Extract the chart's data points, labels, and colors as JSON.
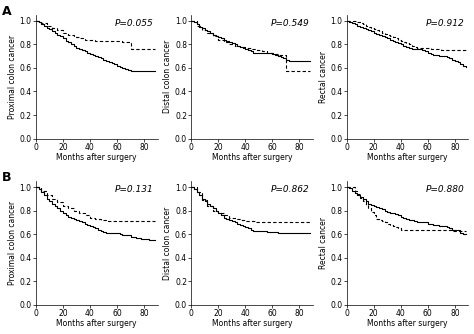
{
  "panels": [
    {
      "row": 0,
      "col": 0,
      "ylabel": "Proximal colon cancer",
      "pvalue": "P=0.055",
      "solid": {
        "t": [
          0,
          2,
          4,
          6,
          8,
          10,
          12,
          14,
          16,
          18,
          20,
          22,
          24,
          26,
          28,
          30,
          32,
          34,
          36,
          38,
          40,
          42,
          44,
          46,
          48,
          50,
          52,
          54,
          56,
          58,
          60,
          62,
          64,
          66,
          68,
          70,
          72,
          74,
          76,
          78,
          80,
          82,
          84,
          86,
          88
        ],
        "s": [
          1.0,
          0.99,
          0.97,
          0.96,
          0.94,
          0.93,
          0.91,
          0.9,
          0.88,
          0.87,
          0.85,
          0.83,
          0.82,
          0.8,
          0.79,
          0.77,
          0.76,
          0.75,
          0.74,
          0.73,
          0.72,
          0.71,
          0.7,
          0.69,
          0.68,
          0.67,
          0.66,
          0.65,
          0.64,
          0.63,
          0.62,
          0.61,
          0.6,
          0.59,
          0.58,
          0.57,
          0.57,
          0.57,
          0.57,
          0.57,
          0.57,
          0.57,
          0.57,
          0.57,
          0.57
        ]
      },
      "dashed": {
        "t": [
          0,
          4,
          8,
          12,
          16,
          20,
          24,
          28,
          32,
          36,
          40,
          44,
          48,
          52,
          56,
          60,
          64,
          68,
          70,
          74,
          78,
          82,
          86,
          88
        ],
        "s": [
          1.0,
          0.98,
          0.96,
          0.94,
          0.92,
          0.9,
          0.88,
          0.86,
          0.85,
          0.84,
          0.84,
          0.83,
          0.83,
          0.83,
          0.83,
          0.83,
          0.82,
          0.82,
          0.76,
          0.76,
          0.76,
          0.76,
          0.76,
          0.76
        ]
      }
    },
    {
      "row": 0,
      "col": 1,
      "ylabel": "Distal colon cancer",
      "pvalue": "P=0.549",
      "solid": {
        "t": [
          0,
          2,
          4,
          6,
          8,
          10,
          12,
          14,
          16,
          18,
          20,
          22,
          24,
          26,
          28,
          30,
          32,
          34,
          36,
          38,
          40,
          42,
          44,
          46,
          48,
          50,
          52,
          54,
          56,
          58,
          60,
          62,
          64,
          66,
          68,
          70,
          72,
          74,
          76,
          78,
          80,
          82,
          84,
          86,
          88
        ],
        "s": [
          1.0,
          0.99,
          0.97,
          0.95,
          0.94,
          0.92,
          0.91,
          0.9,
          0.88,
          0.87,
          0.86,
          0.85,
          0.84,
          0.83,
          0.82,
          0.81,
          0.8,
          0.79,
          0.78,
          0.77,
          0.76,
          0.75,
          0.74,
          0.73,
          0.73,
          0.73,
          0.73,
          0.73,
          0.73,
          0.73,
          0.72,
          0.71,
          0.7,
          0.69,
          0.68,
          0.67,
          0.66,
          0.66,
          0.66,
          0.66,
          0.66,
          0.66,
          0.66,
          0.66,
          0.66
        ]
      },
      "dashed": {
        "t": [
          0,
          4,
          8,
          12,
          16,
          20,
          24,
          28,
          32,
          36,
          40,
          44,
          48,
          50,
          52,
          54,
          56,
          58,
          60,
          62,
          64,
          66,
          68,
          70,
          72,
          74,
          76,
          78,
          80,
          82,
          84,
          86,
          88
        ],
        "s": [
          1.0,
          0.96,
          0.92,
          0.9,
          0.87,
          0.84,
          0.82,
          0.8,
          0.79,
          0.78,
          0.77,
          0.76,
          0.75,
          0.75,
          0.74,
          0.74,
          0.73,
          0.73,
          0.73,
          0.72,
          0.71,
          0.71,
          0.71,
          0.57,
          0.57,
          0.57,
          0.57,
          0.57,
          0.57,
          0.57,
          0.57,
          0.57,
          0.57
        ]
      }
    },
    {
      "row": 0,
      "col": 2,
      "ylabel": "Rectal cancer",
      "pvalue": "P=0.912",
      "solid": {
        "t": [
          0,
          2,
          4,
          6,
          8,
          10,
          12,
          14,
          16,
          18,
          20,
          22,
          24,
          26,
          28,
          30,
          32,
          34,
          36,
          38,
          40,
          42,
          44,
          46,
          48,
          50,
          52,
          54,
          56,
          58,
          60,
          62,
          64,
          66,
          68,
          70,
          72,
          74,
          76,
          78,
          80,
          82,
          84,
          86,
          88
        ],
        "s": [
          1.0,
          0.99,
          0.98,
          0.97,
          0.96,
          0.95,
          0.94,
          0.93,
          0.92,
          0.91,
          0.9,
          0.89,
          0.88,
          0.87,
          0.86,
          0.85,
          0.84,
          0.83,
          0.82,
          0.81,
          0.8,
          0.79,
          0.78,
          0.77,
          0.76,
          0.76,
          0.76,
          0.76,
          0.75,
          0.74,
          0.73,
          0.72,
          0.71,
          0.71,
          0.7,
          0.7,
          0.7,
          0.69,
          0.68,
          0.67,
          0.66,
          0.65,
          0.63,
          0.62,
          0.61
        ]
      },
      "dashed": {
        "t": [
          0,
          2,
          4,
          6,
          8,
          10,
          12,
          14,
          16,
          18,
          20,
          22,
          24,
          26,
          28,
          30,
          32,
          34,
          36,
          38,
          40,
          42,
          44,
          46,
          48,
          50,
          52,
          54,
          56,
          58,
          60,
          62,
          64,
          66,
          68,
          70,
          72,
          74,
          76,
          78,
          80,
          82,
          84,
          86,
          88
        ],
        "s": [
          1.0,
          1.0,
          1.0,
          1.0,
          0.99,
          0.98,
          0.97,
          0.96,
          0.95,
          0.94,
          0.93,
          0.92,
          0.91,
          0.9,
          0.89,
          0.88,
          0.87,
          0.86,
          0.85,
          0.84,
          0.83,
          0.82,
          0.81,
          0.8,
          0.79,
          0.78,
          0.77,
          0.77,
          0.77,
          0.77,
          0.77,
          0.76,
          0.76,
          0.76,
          0.76,
          0.75,
          0.75,
          0.75,
          0.75,
          0.75,
          0.75,
          0.75,
          0.75,
          0.75,
          0.75
        ]
      }
    },
    {
      "row": 1,
      "col": 0,
      "ylabel": "Proximal colon cancer",
      "pvalue": "P=0.131",
      "solid": {
        "t": [
          0,
          2,
          4,
          6,
          8,
          10,
          12,
          14,
          16,
          18,
          20,
          22,
          24,
          26,
          28,
          30,
          32,
          34,
          36,
          38,
          40,
          42,
          44,
          46,
          48,
          50,
          52,
          54,
          56,
          58,
          60,
          62,
          64,
          66,
          68,
          70,
          72,
          74,
          76,
          78,
          80,
          82,
          84,
          86,
          88
        ],
        "s": [
          1.0,
          0.98,
          0.96,
          0.93,
          0.9,
          0.88,
          0.86,
          0.84,
          0.82,
          0.8,
          0.78,
          0.76,
          0.75,
          0.74,
          0.73,
          0.72,
          0.71,
          0.7,
          0.69,
          0.68,
          0.67,
          0.66,
          0.65,
          0.64,
          0.63,
          0.62,
          0.61,
          0.61,
          0.61,
          0.61,
          0.61,
          0.6,
          0.59,
          0.59,
          0.59,
          0.58,
          0.58,
          0.57,
          0.57,
          0.56,
          0.56,
          0.56,
          0.55,
          0.55,
          0.55
        ]
      },
      "dashed": {
        "t": [
          0,
          4,
          8,
          12,
          16,
          20,
          24,
          28,
          32,
          36,
          40,
          44,
          48,
          52,
          56,
          60,
          64,
          68,
          72,
          76,
          80,
          84,
          88
        ],
        "s": [
          1.0,
          0.97,
          0.93,
          0.9,
          0.87,
          0.84,
          0.82,
          0.8,
          0.78,
          0.76,
          0.74,
          0.73,
          0.72,
          0.71,
          0.71,
          0.71,
          0.71,
          0.71,
          0.71,
          0.71,
          0.71,
          0.71,
          0.71
        ]
      }
    },
    {
      "row": 1,
      "col": 1,
      "ylabel": "Distal colon cancer",
      "pvalue": "P=0.862",
      "solid": {
        "t": [
          0,
          2,
          4,
          6,
          8,
          10,
          12,
          14,
          16,
          18,
          20,
          22,
          24,
          26,
          28,
          30,
          32,
          34,
          36,
          38,
          40,
          42,
          44,
          46,
          48,
          50,
          52,
          54,
          56,
          58,
          60,
          62,
          64,
          66,
          68,
          70,
          72,
          74,
          76,
          78,
          80,
          82,
          84,
          86,
          88
        ],
        "s": [
          1.0,
          0.98,
          0.96,
          0.93,
          0.9,
          0.88,
          0.86,
          0.84,
          0.82,
          0.8,
          0.78,
          0.76,
          0.74,
          0.73,
          0.72,
          0.71,
          0.7,
          0.69,
          0.68,
          0.67,
          0.66,
          0.65,
          0.64,
          0.63,
          0.63,
          0.63,
          0.63,
          0.63,
          0.62,
          0.62,
          0.62,
          0.62,
          0.61,
          0.61,
          0.61,
          0.61,
          0.61,
          0.61,
          0.61,
          0.61,
          0.61,
          0.61,
          0.61,
          0.61,
          0.61
        ]
      },
      "dashed": {
        "t": [
          0,
          4,
          8,
          12,
          16,
          20,
          24,
          28,
          32,
          36,
          40,
          44,
          48,
          52,
          56,
          60,
          64,
          68,
          72,
          76,
          80,
          84,
          88
        ],
        "s": [
          1.0,
          0.96,
          0.89,
          0.84,
          0.8,
          0.78,
          0.76,
          0.74,
          0.73,
          0.72,
          0.71,
          0.71,
          0.7,
          0.7,
          0.7,
          0.7,
          0.7,
          0.7,
          0.7,
          0.7,
          0.7,
          0.7,
          0.7
        ]
      }
    },
    {
      "row": 1,
      "col": 2,
      "ylabel": "Rectal cancer",
      "pvalue": "P=0.880",
      "solid": {
        "t": [
          0,
          2,
          4,
          6,
          8,
          10,
          12,
          14,
          16,
          18,
          20,
          22,
          24,
          26,
          28,
          30,
          32,
          34,
          36,
          38,
          40,
          42,
          44,
          46,
          48,
          50,
          52,
          54,
          56,
          58,
          60,
          62,
          64,
          66,
          68,
          70,
          72,
          74,
          76,
          78,
          80,
          82,
          84,
          86,
          88
        ],
        "s": [
          1.0,
          0.99,
          0.97,
          0.95,
          0.93,
          0.92,
          0.9,
          0.88,
          0.86,
          0.85,
          0.84,
          0.83,
          0.82,
          0.81,
          0.8,
          0.79,
          0.78,
          0.78,
          0.77,
          0.76,
          0.75,
          0.74,
          0.73,
          0.72,
          0.72,
          0.71,
          0.7,
          0.7,
          0.7,
          0.7,
          0.69,
          0.69,
          0.68,
          0.68,
          0.67,
          0.67,
          0.67,
          0.66,
          0.65,
          0.64,
          0.64,
          0.64,
          0.61,
          0.6,
          0.6
        ]
      },
      "dashed": {
        "t": [
          0,
          2,
          4,
          6,
          8,
          10,
          12,
          14,
          16,
          18,
          20,
          22,
          24,
          26,
          28,
          30,
          32,
          34,
          36,
          38,
          40,
          42,
          44,
          46,
          48,
          50,
          52,
          54,
          56,
          58,
          60,
          62,
          64,
          66,
          68,
          70,
          72,
          74,
          76,
          78,
          80,
          82,
          84,
          86,
          88
        ],
        "s": [
          1.0,
          1.0,
          1.0,
          0.97,
          0.94,
          0.91,
          0.88,
          0.85,
          0.82,
          0.79,
          0.76,
          0.73,
          0.72,
          0.71,
          0.7,
          0.69,
          0.68,
          0.67,
          0.66,
          0.65,
          0.64,
          0.64,
          0.64,
          0.64,
          0.64,
          0.64,
          0.64,
          0.64,
          0.64,
          0.64,
          0.64,
          0.64,
          0.64,
          0.64,
          0.64,
          0.64,
          0.64,
          0.64,
          0.64,
          0.63,
          0.63,
          0.63,
          0.63,
          0.63,
          0.63
        ]
      }
    }
  ],
  "row_labels": [
    "A",
    "B"
  ],
  "xlim": [
    0,
    90
  ],
  "ylim": [
    0.0,
    1.05
  ],
  "xticks": [
    0,
    20,
    40,
    60,
    80
  ],
  "yticks": [
    0.0,
    0.2,
    0.4,
    0.6,
    0.8,
    1.0
  ],
  "ytick_labels": [
    "0.0",
    "0.2",
    "0.4",
    "0.6",
    "0.8",
    "1.0"
  ],
  "xlabel": "Months after surgery",
  "solid_color": "#000000",
  "dashed_color": "#000000",
  "linewidth": 0.8,
  "fontsize_label": 5.5,
  "fontsize_tick": 5.5,
  "fontsize_pvalue": 6.5,
  "fontsize_rowlabel": 9
}
